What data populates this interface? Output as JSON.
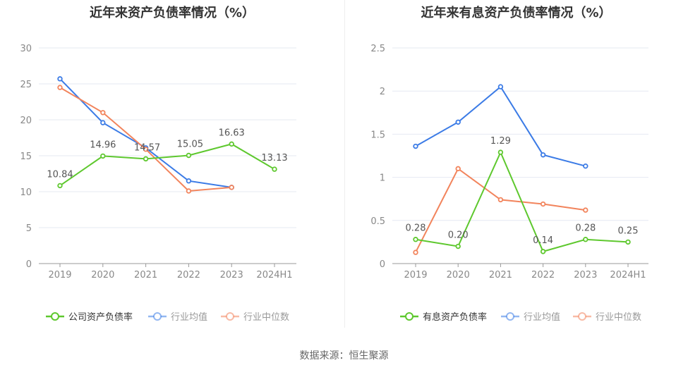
{
  "footer": "数据来源：恒生聚源",
  "charts": [
    {
      "title": "近年来资产负债率情况（%）",
      "chart_data": {
        "type": "line",
        "categories": [
          "2019",
          "2020",
          "2021",
          "2022",
          "2023",
          "2024H1"
        ],
        "ylim": [
          0,
          30
        ],
        "yticks": [
          0,
          5,
          10,
          15,
          20,
          25,
          30
        ],
        "ytick_labels": [
          "0",
          "5",
          "10",
          "15",
          "20",
          "25",
          "30"
        ],
        "grid": true,
        "legend_position": "bottom",
        "series": [
          {
            "name": "公司资产负债率",
            "color": "#5ec82e",
            "values": [
              10.84,
              14.96,
              14.57,
              15.05,
              16.63,
              13.13
            ],
            "labels": [
              "10.84",
              "14.96",
              "14.57",
              "15.05",
              "16.63",
              "13.13"
            ]
          },
          {
            "name": "行业均值",
            "color": "#3b7be6",
            "values": [
              25.7,
              19.6,
              16.1,
              11.5,
              10.6,
              null
            ],
            "labels": null
          },
          {
            "name": "行业中位数",
            "color": "#f2845c",
            "values": [
              24.5,
              21.0,
              15.9,
              10.1,
              10.6,
              null
            ],
            "labels": null
          }
        ]
      }
    },
    {
      "title": "近年来有息资产负债率情况（%）",
      "chart_data": {
        "type": "line",
        "categories": [
          "2019",
          "2020",
          "2021",
          "2022",
          "2023",
          "2024H1"
        ],
        "ylim": [
          0,
          2.5
        ],
        "yticks": [
          0,
          0.5,
          1,
          1.5,
          2,
          2.5
        ],
        "ytick_labels": [
          "0",
          "0.5",
          "1",
          "1.5",
          "2",
          "2.5"
        ],
        "grid": true,
        "legend_position": "bottom",
        "series": [
          {
            "name": "有息资产负债率",
            "color": "#5ec82e",
            "values": [
              0.28,
              0.2,
              1.29,
              0.14,
              0.28,
              0.25
            ],
            "labels": [
              "0.28",
              "0.20",
              "1.29",
              "0.14",
              "0.28",
              "0.25"
            ]
          },
          {
            "name": "行业均值",
            "color": "#3b7be6",
            "values": [
              1.36,
              1.64,
              2.05,
              1.26,
              1.13,
              null
            ],
            "labels": null
          },
          {
            "name": "行业中位数",
            "color": "#f2845c",
            "values": [
              0.13,
              1.1,
              0.74,
              0.69,
              0.62,
              null
            ],
            "labels": null
          }
        ]
      }
    }
  ]
}
